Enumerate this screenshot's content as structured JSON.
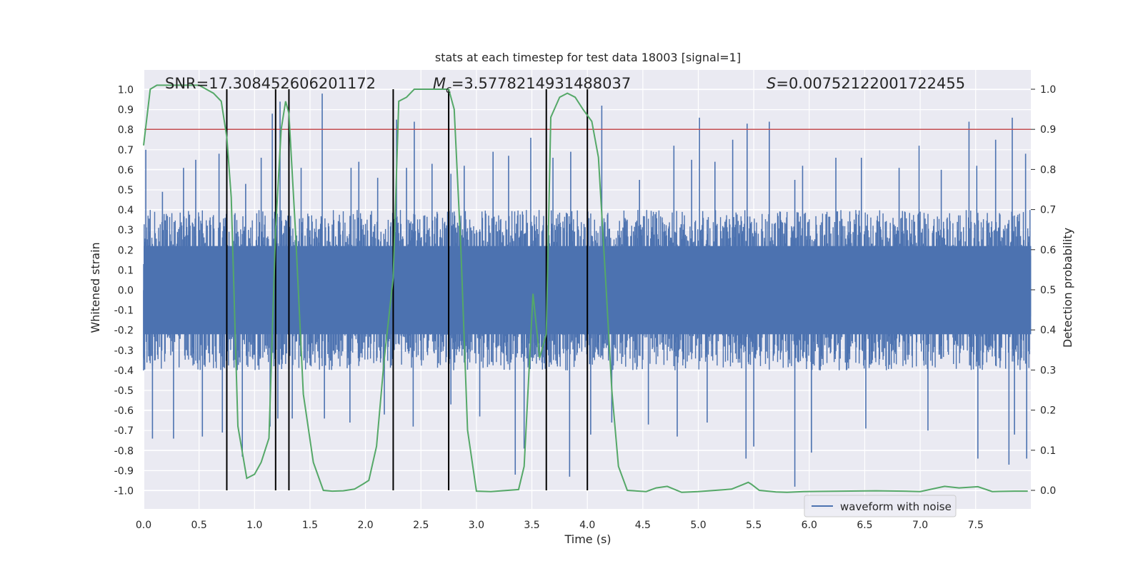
{
  "chart_data": {
    "type": "line",
    "title": "stats at each timestep for test data 18003 [signal=1]",
    "xlabel": "Time (s)",
    "ylabel_left": "Whitened strain",
    "ylabel_right": "Detection probability",
    "xlim": [
      0.0,
      8.0
    ],
    "ylim_left": [
      -1.05,
      1.05
    ],
    "ylim_right": [
      -0.05,
      1.05
    ],
    "x_ticks": [
      "0.0",
      "0.5",
      "1.0",
      "1.5",
      "2.0",
      "2.5",
      "3.0",
      "3.5",
      "4.0",
      "4.5",
      "5.0",
      "5.5",
      "6.0",
      "6.5",
      "7.0",
      "7.5"
    ],
    "y_ticks_left": [
      "1.0",
      "0.9",
      "0.8",
      "0.7",
      "0.6",
      "0.5",
      "0.4",
      "0.3",
      "0.2",
      "0.1",
      "0.0",
      "-0.1",
      "-0.2",
      "-0.3",
      "-0.4",
      "-0.5",
      "-0.6",
      "-0.7",
      "-0.8",
      "-0.9",
      "-1.0"
    ],
    "y_ticks_right": [
      "1.0",
      "0.9",
      "0.8",
      "0.7",
      "0.6",
      "0.5",
      "0.4",
      "0.3",
      "0.2",
      "0.1",
      "0.0"
    ],
    "grid": true,
    "legend": {
      "location": "lower-right",
      "entries": [
        "waveform with noise"
      ]
    },
    "annotations": {
      "snr": "SNR=17.308452606201172",
      "mc_symbol": "M",
      "mc_sub": "c",
      "mc_value": "=3.5778214931488037",
      "s_symbol": "S",
      "s_value": "=0.00752122001722455"
    },
    "threshold": {
      "value": 0.9,
      "axis": "right",
      "color": "#c44e52"
    },
    "event_lines_x": [
      0.75,
      1.19,
      1.31,
      2.25,
      2.75,
      3.63,
      4.0
    ],
    "waveform": {
      "name": "waveform with noise",
      "color": "#4c72b0",
      "core_amplitude": 0.4,
      "peaks": [
        [
          0.02,
          0.7
        ],
        [
          0.17,
          0.49
        ],
        [
          0.36,
          0.61
        ],
        [
          0.47,
          0.65
        ],
        [
          0.68,
          0.68
        ],
        [
          0.92,
          0.53
        ],
        [
          1.06,
          0.66
        ],
        [
          1.16,
          0.88
        ],
        [
          1.23,
          0.94
        ],
        [
          1.31,
          0.59
        ],
        [
          1.42,
          0.61
        ],
        [
          1.61,
          0.98
        ],
        [
          1.87,
          0.61
        ],
        [
          1.94,
          0.64
        ],
        [
          2.11,
          0.56
        ],
        [
          2.25,
          0.76
        ],
        [
          2.28,
          0.85
        ],
        [
          2.37,
          0.61
        ],
        [
          2.44,
          0.84
        ],
        [
          2.6,
          0.63
        ],
        [
          2.77,
          0.58
        ],
        [
          2.89,
          0.62
        ],
        [
          3.15,
          0.69
        ],
        [
          3.29,
          0.67
        ],
        [
          3.49,
          0.76
        ],
        [
          3.69,
          0.66
        ],
        [
          3.85,
          0.69
        ],
        [
          4.13,
          0.92
        ],
        [
          4.47,
          0.55
        ],
        [
          4.78,
          0.72
        ],
        [
          4.94,
          0.65
        ],
        [
          5.01,
          0.86
        ],
        [
          5.15,
          0.64
        ],
        [
          5.31,
          0.75
        ],
        [
          5.44,
          0.83
        ],
        [
          5.64,
          0.84
        ],
        [
          5.87,
          0.55
        ],
        [
          5.94,
          0.62
        ],
        [
          6.24,
          0.66
        ],
        [
          6.47,
          0.66
        ],
        [
          6.81,
          0.61
        ],
        [
          6.99,
          0.72
        ],
        [
          7.19,
          0.6
        ],
        [
          7.44,
          0.84
        ],
        [
          7.51,
          0.62
        ],
        [
          7.68,
          0.75
        ],
        [
          7.83,
          0.86
        ],
        [
          7.95,
          0.68
        ]
      ],
      "troughs": [
        [
          0.0,
          -0.4
        ],
        [
          0.08,
          -0.74
        ],
        [
          0.27,
          -0.74
        ],
        [
          0.53,
          -0.73
        ],
        [
          0.71,
          -0.71
        ],
        [
          0.89,
          -0.83
        ],
        [
          1.14,
          -0.68
        ],
        [
          1.21,
          -0.64
        ],
        [
          1.34,
          -0.64
        ],
        [
          1.63,
          -0.64
        ],
        [
          1.86,
          -0.66
        ],
        [
          2.17,
          -0.62
        ],
        [
          2.43,
          -0.68
        ],
        [
          2.77,
          -0.57
        ],
        [
          3.03,
          -0.63
        ],
        [
          3.35,
          -0.92
        ],
        [
          3.43,
          -0.79
        ],
        [
          3.84,
          -0.93
        ],
        [
          4.03,
          -0.72
        ],
        [
          4.22,
          -0.66
        ],
        [
          4.55,
          -0.67
        ],
        [
          4.81,
          -0.73
        ],
        [
          5.08,
          -0.66
        ],
        [
          5.43,
          -0.84
        ],
        [
          5.5,
          -0.78
        ],
        [
          5.87,
          -0.98
        ],
        [
          6.02,
          -0.81
        ],
        [
          6.51,
          -0.69
        ],
        [
          7.07,
          -0.7
        ],
        [
          7.52,
          -0.84
        ],
        [
          7.8,
          -0.87
        ],
        [
          7.85,
          -0.72
        ],
        [
          7.96,
          -0.84
        ]
      ]
    },
    "series": [
      {
        "name": "detection probability",
        "axis": "right",
        "color": "#55a868",
        "x": [
          0.0,
          0.06,
          0.12,
          0.5,
          0.63,
          0.7,
          0.75,
          0.79,
          0.85,
          0.93,
          1.0,
          1.06,
          1.13,
          1.19,
          1.24,
          1.28,
          1.31,
          1.37,
          1.44,
          1.53,
          1.62,
          1.7,
          1.8,
          1.9,
          1.98,
          2.03,
          2.1,
          2.17,
          2.25,
          2.3,
          2.37,
          2.44,
          2.75,
          2.8,
          2.86,
          2.92,
          3.0,
          3.13,
          3.38,
          3.43,
          3.51,
          3.57,
          3.63,
          3.67,
          3.75,
          3.82,
          3.89,
          3.96,
          4.04,
          4.1,
          4.17,
          4.22,
          4.28,
          4.36,
          4.53,
          4.62,
          4.72,
          4.85,
          5.0,
          5.3,
          5.4,
          5.45,
          5.48,
          5.55,
          5.7,
          5.8,
          5.95,
          6.3,
          6.6,
          6.85,
          7.0,
          7.22,
          7.35,
          7.52,
          7.65,
          7.85,
          7.97
        ],
        "y": [
          0.86,
          1.0,
          1.01,
          1.01,
          0.99,
          0.97,
          0.88,
          0.73,
          0.16,
          0.03,
          0.04,
          0.07,
          0.13,
          0.65,
          0.9,
          0.97,
          0.94,
          0.64,
          0.24,
          0.07,
          0.0,
          -0.002,
          -0.001,
          0.003,
          0.016,
          0.025,
          0.11,
          0.33,
          0.53,
          0.97,
          0.98,
          1.0,
          1.0,
          0.95,
          0.6,
          0.15,
          -0.002,
          -0.003,
          0.002,
          0.06,
          0.49,
          0.33,
          0.39,
          0.93,
          0.98,
          0.99,
          0.98,
          0.95,
          0.92,
          0.83,
          0.5,
          0.25,
          0.06,
          0.0,
          -0.003,
          0.006,
          0.01,
          -0.005,
          -0.003,
          0.003,
          0.014,
          0.02,
          0.015,
          0.0,
          -0.004,
          -0.005,
          -0.003,
          -0.002,
          -0.001,
          -0.002,
          -0.003,
          0.01,
          0.006,
          0.009,
          -0.003,
          -0.002,
          -0.002
        ]
      }
    ]
  }
}
